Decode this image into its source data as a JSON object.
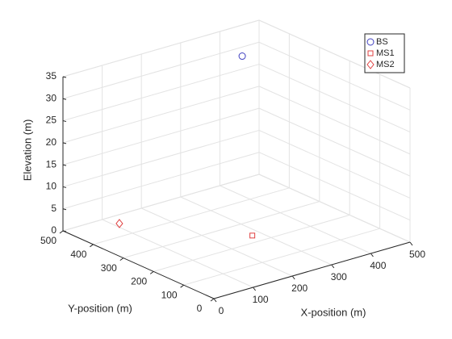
{
  "chart_data": {
    "type": "scatter3d",
    "xlabel": "X-position (m)",
    "ylabel": "Y-position (m)",
    "zlabel": "Elevation (m)",
    "xlim": [
      0,
      500
    ],
    "ylim": [
      0,
      500
    ],
    "zlim": [
      0,
      35
    ],
    "xticks": [
      0,
      100,
      200,
      300,
      400,
      500
    ],
    "yticks": [
      0,
      100,
      200,
      300,
      400,
      500
    ],
    "zticks": [
      0,
      5,
      10,
      15,
      20,
      25,
      30,
      35
    ],
    "grid": true,
    "legend": "upper right",
    "series": [
      {
        "name": "BS",
        "color": "#4040c0",
        "marker": "circle",
        "x": [
          380
        ],
        "y": [
          400
        ],
        "z": [
          33
        ]
      },
      {
        "name": "MS1",
        "color": "#e04040",
        "marker": "square",
        "x": [
          255
        ],
        "y": [
          204
        ],
        "z": [
          1.5
        ]
      },
      {
        "name": "MS2",
        "color": "#e04040",
        "marker": "diamond",
        "x": [
          90
        ],
        "y": [
          430
        ],
        "z": [
          1.5
        ]
      }
    ]
  }
}
